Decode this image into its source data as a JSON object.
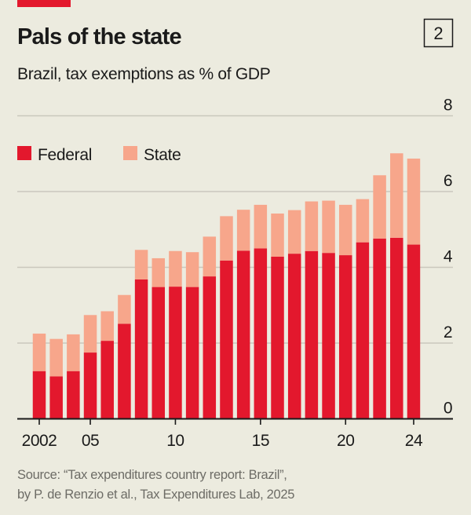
{
  "header": {
    "title": "Pals of the state",
    "subtitle": "Brazil, tax exemptions as % of GDP",
    "badge": "2"
  },
  "colors": {
    "federal": "#e3182d",
    "state": "#f7a68b",
    "background": "#ecebdf",
    "brand_bar": "#e3182d"
  },
  "chart_data": {
    "type": "bar",
    "stacked": true,
    "title": "Pals of the state",
    "subtitle": "Brazil, tax exemptions as % of GDP",
    "categories": [
      2002,
      2003,
      2004,
      2005,
      2006,
      2007,
      2008,
      2009,
      2010,
      2011,
      2012,
      2013,
      2014,
      2015,
      2016,
      2017,
      2018,
      2019,
      2020,
      2021,
      2022,
      2023,
      2024
    ],
    "x_tick_labels": [
      {
        "year": 2002,
        "label": "2002"
      },
      {
        "year": 2005,
        "label": "05"
      },
      {
        "year": 2010,
        "label": "10"
      },
      {
        "year": 2015,
        "label": "15"
      },
      {
        "year": 2020,
        "label": "20"
      },
      {
        "year": 2024,
        "label": "24"
      }
    ],
    "series": [
      {
        "name": "Federal",
        "color": "#e3182d",
        "values": [
          1.26,
          1.12,
          1.26,
          1.75,
          2.06,
          2.51,
          3.68,
          3.48,
          3.49,
          3.48,
          3.76,
          4.18,
          4.44,
          4.5,
          4.28,
          4.36,
          4.43,
          4.38,
          4.32,
          4.66,
          4.76,
          4.78,
          4.6
        ]
      },
      {
        "name": "State",
        "color": "#f7a68b",
        "values": [
          0.99,
          0.99,
          0.97,
          0.99,
          0.78,
          0.76,
          0.78,
          0.76,
          0.94,
          0.92,
          1.05,
          1.17,
          1.08,
          1.15,
          1.14,
          1.15,
          1.31,
          1.38,
          1.33,
          1.14,
          1.67,
          2.23,
          2.27
        ]
      }
    ],
    "y_ticks": [
      "0",
      "2",
      "4",
      "6",
      "8"
    ],
    "ylim": [
      0,
      8
    ],
    "y_axis_side": "right",
    "grid": true,
    "legend_placement": "top-left"
  },
  "footer": {
    "source_line1": "Source: “Tax expenditures country report: Brazil”,",
    "source_line2": "by P. de Renzio et al., Tax Expenditures Lab, 2025"
  }
}
